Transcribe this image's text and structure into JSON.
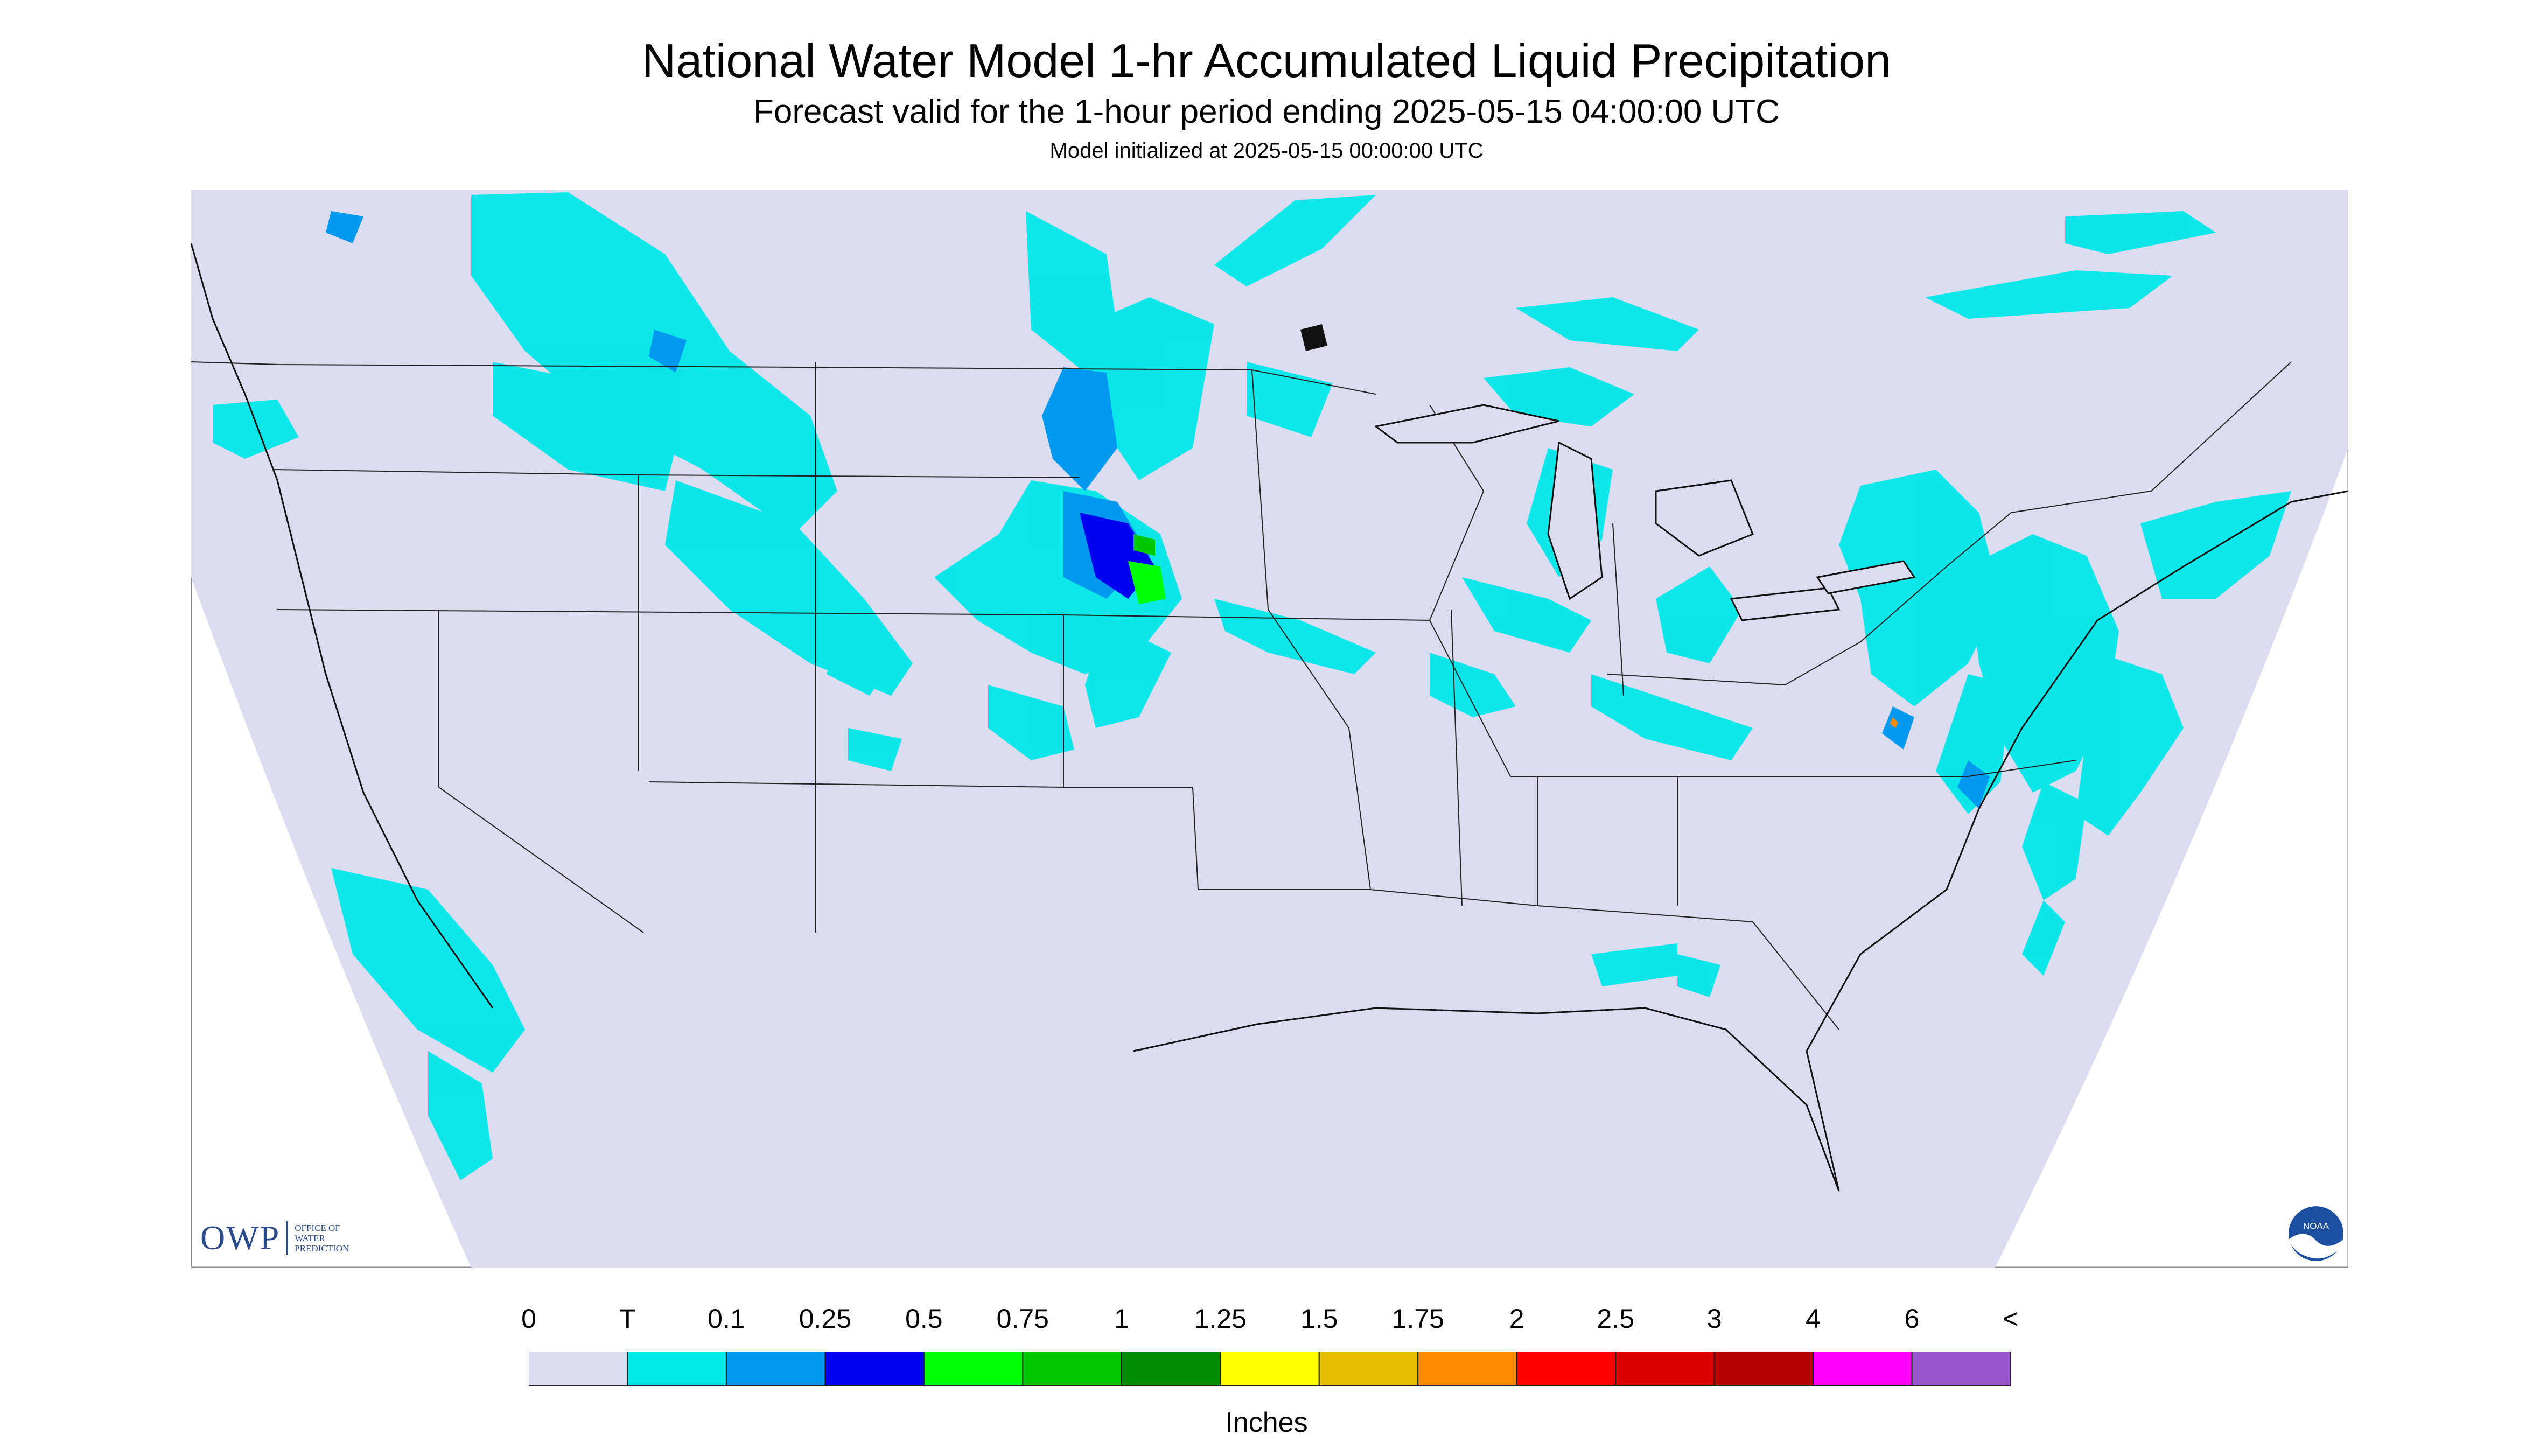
{
  "header": {
    "title": "National Water Model 1-hr Accumulated Liquid Precipitation",
    "subtitle": "Forecast valid for the 1-hour period ending 2025-05-15 04:00:00 UTC",
    "init": "Model initialized at 2025-05-15 00:00:00 UTC"
  },
  "legend": {
    "labels": [
      "0",
      "T",
      "0.1",
      "0.25",
      "0.5",
      "0.75",
      "1",
      "1.25",
      "1.5",
      "1.75",
      "2",
      "2.5",
      "3",
      "4",
      "6",
      "<"
    ],
    "colors": [
      "#dcdcf0",
      "#00e8e8",
      "#0099f0",
      "#0000f0",
      "#00ff00",
      "#00c800",
      "#008c00",
      "#ffff00",
      "#e6be00",
      "#ff8c00",
      "#ff0000",
      "#dc0000",
      "#b40000",
      "#ff00ff",
      "#9955cc"
    ],
    "units": "Inches"
  },
  "logo": {
    "owp": "OWP",
    "owp_lines": [
      "OFFICE OF",
      "WATER",
      "PREDICTION"
    ],
    "noaa": "NOAA"
  },
  "map": {
    "background": "#dcdcf0",
    "outside": "#ffffff",
    "boundary": "#222222"
  }
}
